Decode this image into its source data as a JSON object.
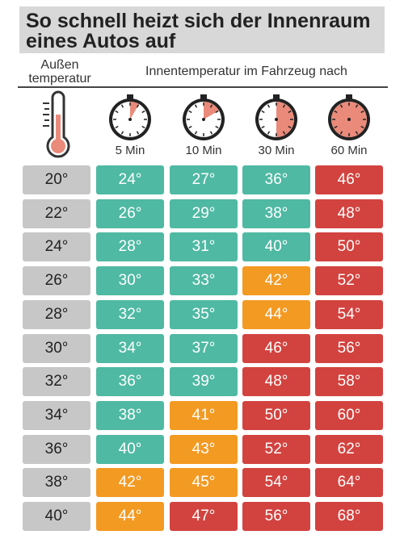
{
  "title": {
    "line1": "So schnell heizt sich der Innenraum",
    "line2": "eines Autos auf"
  },
  "header": {
    "outside_line1": "Außen",
    "outside_line2": "temperatur",
    "inside": "Innentemperatur im Fahrzeug nach",
    "thermometer_icon": "thermometer-icon",
    "clock_icon": "stopwatch-icon"
  },
  "colors": {
    "title_bg": "#d8d8d8",
    "outside_cell": "#c7c7c7",
    "safe": "#4fb9a3",
    "warning": "#f39a22",
    "danger": "#d2433f",
    "clock_fill": "#ea8a7a",
    "thermo_fill": "#ea8a7a"
  },
  "chart_data": {
    "type": "table",
    "title": "So schnell heizt sich der Innenraum eines Autos auf",
    "row_header": "Außen temperatur",
    "column_group_header": "Innentemperatur im Fahrzeug nach",
    "columns": [
      "5 Min",
      "10 Min",
      "30 Min",
      "60 Min"
    ],
    "column_minutes": [
      5,
      10,
      30,
      60
    ],
    "rows": [
      {
        "outside": "20°",
        "values": [
          "24°",
          "27°",
          "36°",
          "46°"
        ],
        "levels": [
          "safe",
          "safe",
          "safe",
          "danger"
        ]
      },
      {
        "outside": "22°",
        "values": [
          "26°",
          "29°",
          "38°",
          "48°"
        ],
        "levels": [
          "safe",
          "safe",
          "safe",
          "danger"
        ]
      },
      {
        "outside": "24°",
        "values": [
          "28°",
          "31°",
          "40°",
          "50°"
        ],
        "levels": [
          "safe",
          "safe",
          "safe",
          "danger"
        ]
      },
      {
        "outside": "26°",
        "values": [
          "30°",
          "33°",
          "42°",
          "52°"
        ],
        "levels": [
          "safe",
          "safe",
          "warning",
          "danger"
        ]
      },
      {
        "outside": "28°",
        "values": [
          "32°",
          "35°",
          "44°",
          "54°"
        ],
        "levels": [
          "safe",
          "safe",
          "warning",
          "danger"
        ]
      },
      {
        "outside": "30°",
        "values": [
          "34°",
          "37°",
          "46°",
          "56°"
        ],
        "levels": [
          "safe",
          "safe",
          "danger",
          "danger"
        ]
      },
      {
        "outside": "32°",
        "values": [
          "36°",
          "39°",
          "48°",
          "58°"
        ],
        "levels": [
          "safe",
          "safe",
          "danger",
          "danger"
        ]
      },
      {
        "outside": "34°",
        "values": [
          "38°",
          "41°",
          "50°",
          "60°"
        ],
        "levels": [
          "safe",
          "warning",
          "danger",
          "danger"
        ]
      },
      {
        "outside": "36°",
        "values": [
          "40°",
          "43°",
          "52°",
          "62°"
        ],
        "levels": [
          "safe",
          "warning",
          "danger",
          "danger"
        ]
      },
      {
        "outside": "38°",
        "values": [
          "42°",
          "45°",
          "54°",
          "64°"
        ],
        "levels": [
          "warning",
          "warning",
          "danger",
          "danger"
        ]
      },
      {
        "outside": "40°",
        "values": [
          "44°",
          "47°",
          "56°",
          "68°"
        ],
        "levels": [
          "warning",
          "danger",
          "danger",
          "danger"
        ]
      }
    ]
  }
}
